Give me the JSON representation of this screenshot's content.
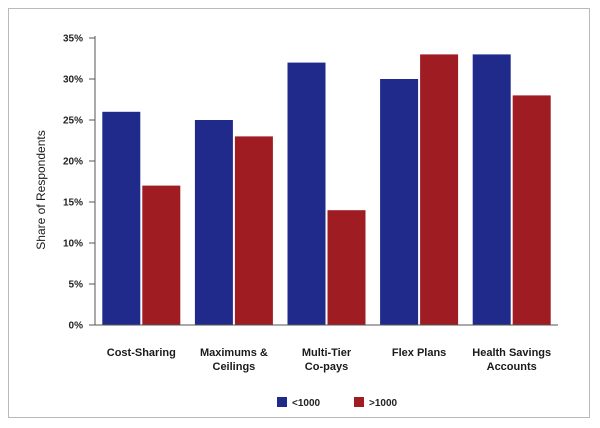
{
  "chart_data": {
    "type": "bar",
    "categories": [
      [
        "Cost-Sharing"
      ],
      [
        "Maximums &",
        "Ceilings"
      ],
      [
        "Multi-Tier",
        "Co-pays"
      ],
      [
        "Flex Plans"
      ],
      [
        "Health Savings",
        "Accounts"
      ]
    ],
    "series": [
      {
        "name": "<1000",
        "color": "#1f2a8a",
        "values": [
          26,
          25,
          32,
          30,
          33
        ]
      },
      {
        "name": ">1000",
        "color": "#a01c23",
        "values": [
          17,
          23,
          14,
          33,
          28
        ]
      }
    ],
    "title": "",
    "xlabel": "",
    "ylabel": "Share of Respondents",
    "ylim": [
      0,
      35
    ],
    "yticks": [
      0,
      5,
      10,
      15,
      20,
      25,
      30,
      35
    ],
    "ytick_format": "percent",
    "grid": false,
    "legend": "bottom-center"
  }
}
